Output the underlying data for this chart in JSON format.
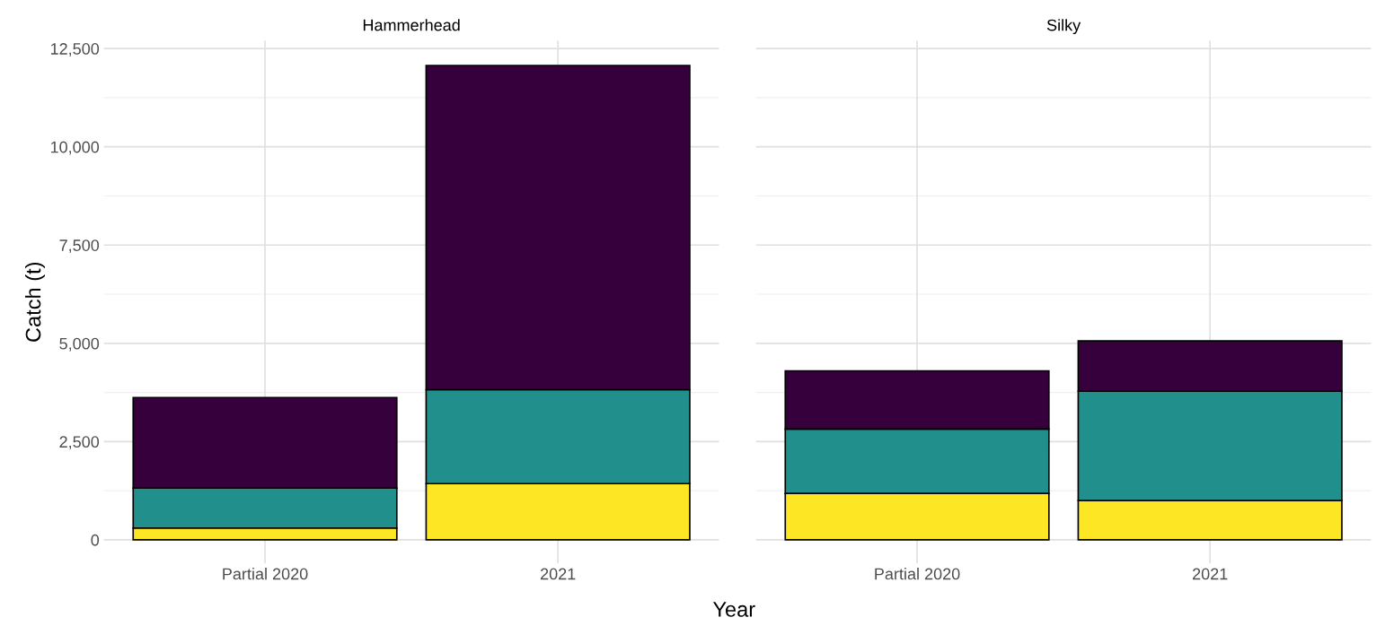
{
  "chart_data": [
    {
      "type": "bar",
      "title": "Hammerhead",
      "xlabel": "Year",
      "ylabel": "Catch (t)",
      "categories": [
        "Partial 2020",
        "2021"
      ],
      "stacked": true,
      "grid": true,
      "ylim": [
        -600,
        12700
      ],
      "yticks": [
        {
          "value": 0,
          "label": "0"
        },
        {
          "value": 2500,
          "label": "2,500"
        },
        {
          "value": 5000,
          "label": "5,000"
        },
        {
          "value": 7500,
          "label": "7,500"
        },
        {
          "value": 10000,
          "label": "10,000"
        },
        {
          "value": 12500,
          "label": "12,500"
        }
      ],
      "series": [
        {
          "color": "#fde725",
          "values": [
            300,
            1430
          ]
        },
        {
          "color": "#21908c",
          "values": [
            1020,
            2390
          ]
        },
        {
          "color": "#35003c",
          "values": [
            2300,
            8250
          ]
        }
      ]
    },
    {
      "type": "bar",
      "title": "Silky",
      "categories": [
        "Partial 2020",
        "2021"
      ],
      "stacked": true,
      "grid": true,
      "tick_labels": "x",
      "ylim": [
        -600,
        12700
      ],
      "yticks": [
        0,
        2500,
        5000,
        7500,
        10000,
        12500
      ],
      "series": [
        {
          "color": "#fde725",
          "values": [
            1180,
            1000
          ]
        },
        {
          "color": "#21908c",
          "values": [
            1640,
            2780
          ]
        },
        {
          "color": "#35003c",
          "values": [
            1480,
            1280
          ]
        }
      ]
    }
  ]
}
